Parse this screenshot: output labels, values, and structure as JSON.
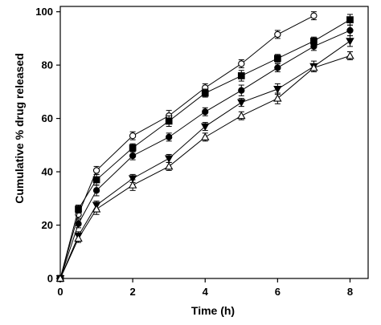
{
  "chart_data": {
    "type": "line",
    "title": "",
    "xlabel": "Time (h)",
    "ylabel": "Cumulative % drug released",
    "xlim": [
      0,
      8.5
    ],
    "ylim": [
      0,
      102
    ],
    "xticks": [
      0,
      2,
      4,
      6,
      8
    ],
    "yticks": [
      0,
      20,
      40,
      60,
      80,
      100
    ],
    "grid": false,
    "legend": "none",
    "x": [
      0,
      0.5,
      1,
      2,
      3,
      4,
      5,
      6,
      7,
      8
    ],
    "series": [
      {
        "marker": "circle-open",
        "values": [
          0,
          24,
          40.5,
          53.5,
          61,
          71.5,
          80.5,
          91.5,
          98.5,
          null
        ],
        "errors": [
          0,
          1.5,
          1.5,
          1.5,
          2,
          1.5,
          1.5,
          1.5,
          1.5,
          null
        ]
      },
      {
        "marker": "square-filled",
        "values": [
          0,
          26,
          37,
          49,
          59,
          69.5,
          76,
          82.5,
          89,
          97
        ],
        "errors": [
          0,
          1.5,
          2,
          1.5,
          2,
          1.5,
          2,
          1.5,
          1.5,
          2
        ]
      },
      {
        "marker": "circle-filled",
        "values": [
          0,
          20.5,
          33,
          46,
          53,
          62.5,
          70.5,
          79,
          87,
          93
        ],
        "errors": [
          0,
          1.5,
          2,
          1.5,
          1.5,
          1.5,
          2,
          1.5,
          1.5,
          2
        ]
      },
      {
        "marker": "triangle-down-filled",
        "values": [
          0,
          16,
          27.5,
          37.5,
          45,
          57,
          66,
          71,
          79.5,
          89
        ],
        "errors": [
          0,
          1.5,
          1.5,
          1.5,
          1.5,
          1.5,
          1.5,
          2,
          2,
          2
        ]
      },
      {
        "marker": "triangle-up-open",
        "values": [
          0,
          15,
          26,
          35,
          42,
          53,
          61,
          67.5,
          79,
          83.5
        ],
        "errors": [
          0,
          1.5,
          2,
          2,
          1.5,
          1.5,
          1.5,
          2,
          1.5,
          1.5
        ]
      }
    ]
  }
}
